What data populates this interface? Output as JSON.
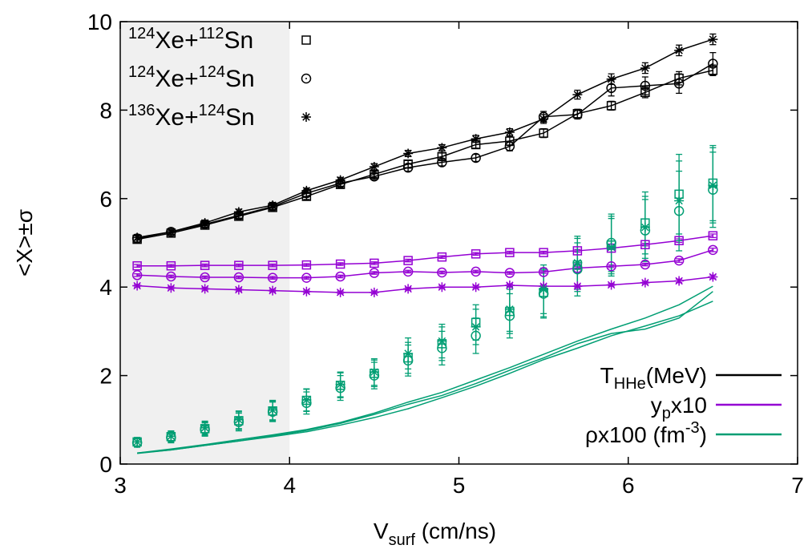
{
  "chart_data": {
    "type": "line",
    "xlabel": {
      "main": "V",
      "sub": "surf",
      "rest": " (cm/ns)"
    },
    "ylabel": "<X>±σ",
    "xlim": [
      3,
      7
    ],
    "ylim": [
      0,
      10
    ],
    "xticks": [
      "3",
      "4",
      "5",
      "6",
      "7"
    ],
    "yticks": [
      "0",
      "2",
      "4",
      "6",
      "8",
      "10"
    ],
    "grid": false,
    "shaded_region": {
      "x0": 3,
      "x1": 4,
      "color": "#f0f0f0"
    },
    "colors": {
      "temperature": "#000000",
      "proton_fraction": "#9400d3",
      "density": "#009e73"
    },
    "reaction_legend": [
      {
        "a1": "124",
        "e1": "Xe+",
        "a2": "112",
        "e2": "Sn",
        "marker": "square",
        "symbol": "□"
      },
      {
        "a1": "124",
        "e1": "Xe+",
        "a2": "124",
        "e2": "Sn",
        "marker": "circle",
        "symbol": "⊙"
      },
      {
        "a1": "136",
        "e1": "Xe+",
        "a2": "124",
        "e2": "Sn",
        "marker": "star",
        "symbol": "✳"
      }
    ],
    "quantity_legend": [
      {
        "pre": "T",
        "sub": "HHe",
        "sup": "",
        "post": "(MeV)",
        "color": "#000000"
      },
      {
        "pre": "y",
        "sub": "p",
        "sup": "",
        "post": "x10",
        "color": "#9400d3"
      },
      {
        "pre": "ρx100 (fm",
        "sub": "",
        "sup": "-3",
        "post": ")",
        "color": "#009e73"
      }
    ],
    "x": [
      3.1,
      3.3,
      3.5,
      3.7,
      3.9,
      4.1,
      4.3,
      4.5,
      4.7,
      4.9,
      5.1,
      5.3,
      5.5,
      5.7,
      5.9,
      6.1,
      6.3,
      6.5
    ],
    "series": [
      {
        "quantity": "temperature",
        "marker": "square",
        "values": [
          5.08,
          5.22,
          5.4,
          5.6,
          5.8,
          6.05,
          6.32,
          6.55,
          6.78,
          6.95,
          7.22,
          7.3,
          7.48,
          7.92,
          8.1,
          8.4,
          8.72,
          8.9
        ],
        "errors": [
          0.08,
          0.06,
          0.06,
          0.06,
          0.06,
          0.07,
          0.07,
          0.07,
          0.08,
          0.08,
          0.08,
          0.1,
          0.1,
          0.1,
          0.1,
          0.12,
          0.15,
          0.12
        ]
      },
      {
        "quantity": "temperature",
        "marker": "circle",
        "values": [
          5.1,
          5.25,
          5.42,
          5.62,
          5.82,
          6.12,
          6.35,
          6.5,
          6.7,
          6.82,
          6.92,
          7.18,
          7.85,
          7.9,
          8.5,
          8.55,
          8.6,
          9.05
        ],
        "errors": [
          0.08,
          0.06,
          0.06,
          0.06,
          0.06,
          0.07,
          0.07,
          0.07,
          0.08,
          0.08,
          0.08,
          0.1,
          0.12,
          0.1,
          0.18,
          0.2,
          0.22,
          0.25
        ]
      },
      {
        "quantity": "temperature",
        "marker": "star",
        "values": [
          5.12,
          5.25,
          5.45,
          5.7,
          5.85,
          6.18,
          6.42,
          6.72,
          7.02,
          7.15,
          7.35,
          7.5,
          7.8,
          8.35,
          8.7,
          8.95,
          9.35,
          9.6
        ],
        "errors": [
          0.06,
          0.06,
          0.06,
          0.06,
          0.06,
          0.06,
          0.06,
          0.07,
          0.07,
          0.07,
          0.08,
          0.08,
          0.1,
          0.1,
          0.12,
          0.12,
          0.12,
          0.12
        ]
      },
      {
        "quantity": "proton_fraction",
        "marker": "square",
        "values": [
          4.48,
          4.48,
          4.49,
          4.49,
          4.49,
          4.5,
          4.52,
          4.54,
          4.6,
          4.68,
          4.75,
          4.78,
          4.78,
          4.82,
          4.88,
          4.96,
          5.05,
          5.16
        ],
        "errors": [
          0.03,
          0.03,
          0.03,
          0.03,
          0.03,
          0.03,
          0.03,
          0.03,
          0.03,
          0.03,
          0.03,
          0.03,
          0.03,
          0.03,
          0.03,
          0.03,
          0.04,
          0.04
        ]
      },
      {
        "quantity": "proton_fraction",
        "marker": "circle",
        "values": [
          4.27,
          4.24,
          4.22,
          4.22,
          4.21,
          4.21,
          4.24,
          4.32,
          4.35,
          4.33,
          4.35,
          4.32,
          4.34,
          4.43,
          4.47,
          4.51,
          4.6,
          4.84
        ],
        "errors": [
          0.03,
          0.03,
          0.03,
          0.03,
          0.03,
          0.03,
          0.03,
          0.03,
          0.03,
          0.03,
          0.03,
          0.03,
          0.03,
          0.03,
          0.03,
          0.03,
          0.04,
          0.04
        ]
      },
      {
        "quantity": "proton_fraction",
        "marker": "star",
        "values": [
          4.03,
          3.98,
          3.96,
          3.94,
          3.92,
          3.9,
          3.88,
          3.88,
          3.96,
          4.0,
          4.0,
          4.04,
          4.02,
          4.02,
          4.05,
          4.1,
          4.14,
          4.23
        ],
        "errors": [
          0.03,
          0.03,
          0.03,
          0.03,
          0.03,
          0.03,
          0.03,
          0.03,
          0.03,
          0.03,
          0.03,
          0.03,
          0.03,
          0.03,
          0.03,
          0.03,
          0.04,
          0.04
        ]
      },
      {
        "quantity": "density",
        "marker": "square",
        "values": [
          0.5,
          0.62,
          0.8,
          0.98,
          1.2,
          1.44,
          1.78,
          2.05,
          2.4,
          2.72,
          3.2,
          3.45,
          3.88,
          4.5,
          4.95,
          5.45,
          6.1,
          6.35
        ],
        "errors": [
          0.1,
          0.12,
          0.15,
          0.2,
          0.22,
          0.25,
          0.28,
          0.3,
          0.35,
          0.38,
          0.4,
          0.5,
          0.55,
          0.6,
          0.65,
          0.7,
          0.9,
          0.85
        ]
      },
      {
        "quantity": "density",
        "marker": "circle",
        "values": [
          0.48,
          0.6,
          0.78,
          0.95,
          1.18,
          1.38,
          1.72,
          2.0,
          2.34,
          2.62,
          2.9,
          3.35,
          3.85,
          4.4,
          5.0,
          5.28,
          5.72,
          6.2
        ],
        "errors": [
          0.1,
          0.12,
          0.15,
          0.2,
          0.22,
          0.25,
          0.28,
          0.3,
          0.35,
          0.38,
          0.4,
          0.5,
          0.55,
          0.6,
          0.65,
          0.7,
          0.9,
          0.85
        ]
      },
      {
        "quantity": "density",
        "marker": "star",
        "values": [
          0.5,
          0.63,
          0.82,
          1.0,
          1.22,
          1.45,
          1.8,
          2.08,
          2.5,
          2.78,
          3.1,
          3.5,
          3.95,
          4.55,
          4.9,
          5.35,
          5.95,
          6.3
        ],
        "errors": [
          0.1,
          0.12,
          0.15,
          0.2,
          0.22,
          0.25,
          0.28,
          0.3,
          0.35,
          0.38,
          0.4,
          0.5,
          0.55,
          0.6,
          0.65,
          0.7,
          0.9,
          0.85
        ]
      }
    ],
    "density_lines": [
      {
        "values": [
          0.25,
          0.32,
          0.42,
          0.52,
          0.64,
          0.76,
          0.92,
          1.12,
          1.35,
          1.55,
          1.82,
          2.12,
          2.4,
          2.72,
          2.95,
          3.05,
          3.3,
          3.9
        ]
      },
      {
        "values": [
          0.25,
          0.34,
          0.44,
          0.55,
          0.66,
          0.78,
          0.94,
          1.15,
          1.4,
          1.62,
          1.9,
          2.18,
          2.48,
          2.78,
          3.05,
          3.3,
          3.6,
          4.02
        ]
      },
      {
        "values": [
          0.24,
          0.32,
          0.42,
          0.52,
          0.62,
          0.73,
          0.88,
          1.05,
          1.25,
          1.5,
          1.76,
          2.05,
          2.36,
          2.62,
          2.9,
          3.12,
          3.35,
          3.68
        ]
      }
    ]
  }
}
